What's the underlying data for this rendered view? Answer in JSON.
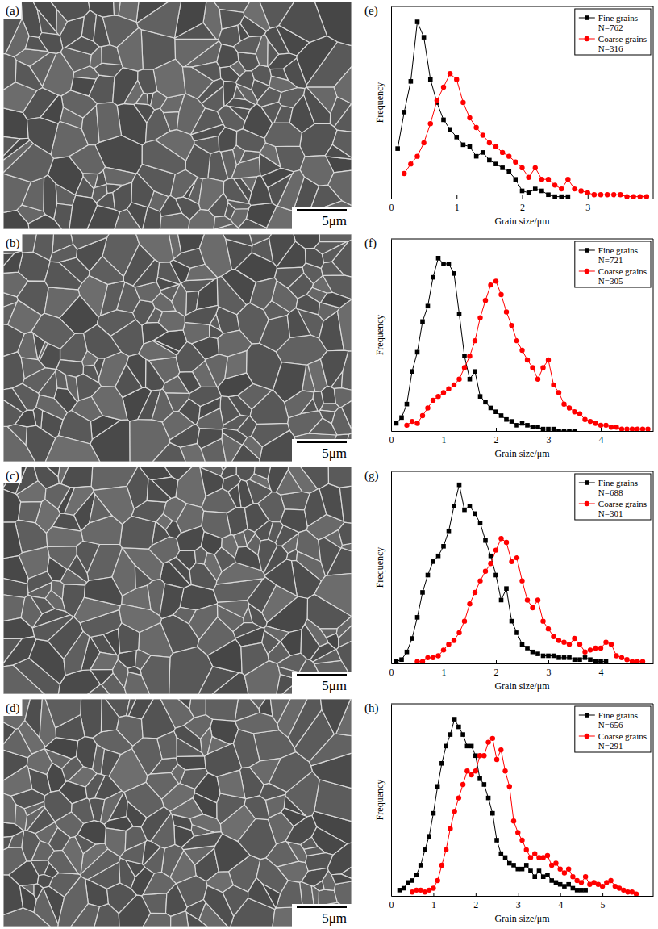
{
  "images": [
    {
      "label": "(a)",
      "scale_bar": "5μm"
    },
    {
      "label": "(b)",
      "scale_bar": "5μm"
    },
    {
      "label": "(c)",
      "scale_bar": "5μm"
    },
    {
      "label": "(d)",
      "scale_bar": "5μm"
    }
  ],
  "chart_data": [
    {
      "type": "line",
      "label": "(e)",
      "xlabel": "Grain size/μm",
      "ylabel": "Frequency",
      "xlim": [
        0,
        4
      ],
      "xticks": [
        0,
        1,
        2,
        3
      ],
      "ylim": [
        0,
        100
      ],
      "tick_labels": "x",
      "legend": "top-right",
      "series": [
        {
          "name": "Fine grains\nN=762",
          "color": "#000000",
          "marker": "square",
          "x": [
            0.1,
            0.2,
            0.3,
            0.4,
            0.5,
            0.6,
            0.7,
            0.8,
            0.9,
            1.0,
            1.1,
            1.2,
            1.3,
            1.4,
            1.5,
            1.6,
            1.7,
            1.8,
            1.9,
            2.0,
            2.1,
            2.2,
            2.3,
            2.4,
            2.5,
            2.6,
            2.7
          ],
          "values": [
            26,
            45,
            61,
            92,
            84,
            62,
            50,
            41,
            36,
            32,
            28,
            27,
            22,
            24,
            20,
            18,
            16,
            14,
            10,
            4,
            3,
            5,
            4,
            2,
            1,
            1,
            1
          ]
        },
        {
          "name": "Coarse grains\nN=316",
          "color": "#ff0000",
          "marker": "circle",
          "x": [
            0.2,
            0.3,
            0.4,
            0.5,
            0.6,
            0.7,
            0.8,
            0.9,
            1.0,
            1.1,
            1.2,
            1.3,
            1.4,
            1.5,
            1.6,
            1.7,
            1.8,
            1.9,
            2.0,
            2.1,
            2.2,
            2.3,
            2.4,
            2.5,
            2.6,
            2.7,
            2.8,
            2.9,
            3.0,
            3.1,
            3.2,
            3.3,
            3.4,
            3.5,
            3.6,
            3.7,
            3.8,
            3.9
          ],
          "values": [
            13,
            18,
            22,
            29,
            39,
            51,
            58,
            65,
            62,
            50,
            42,
            37,
            33,
            29,
            27,
            24,
            22,
            19,
            16,
            11,
            16,
            10,
            10,
            7,
            5,
            10,
            5,
            4,
            3,
            2,
            2,
            2,
            2,
            2,
            1,
            1,
            1,
            1
          ]
        }
      ]
    },
    {
      "type": "line",
      "label": "(f)",
      "xlabel": "Grain size/μm",
      "ylabel": "Frequency",
      "xlim": [
        0,
        5
      ],
      "xticks": [
        0,
        1,
        2,
        3,
        4
      ],
      "ylim": [
        0,
        100
      ],
      "tick_labels": "x",
      "legend": "top-right",
      "series": [
        {
          "name": "Fine grains\nN=721",
          "color": "#000000",
          "marker": "square",
          "x": [
            0.1,
            0.2,
            0.3,
            0.4,
            0.5,
            0.6,
            0.7,
            0.8,
            0.9,
            1.0,
            1.1,
            1.2,
            1.3,
            1.4,
            1.5,
            1.6,
            1.7,
            1.8,
            1.9,
            2.0,
            2.1,
            2.2,
            2.3,
            2.4,
            2.5,
            2.6,
            2.7,
            2.8,
            2.9,
            3.0,
            3.1,
            3.2,
            3.3,
            3.4,
            3.5
          ],
          "values": [
            4,
            7,
            14,
            31,
            41,
            57,
            65,
            80,
            90,
            87,
            87,
            82,
            61,
            39,
            27,
            31,
            18,
            15,
            12,
            10,
            8,
            6,
            5,
            3,
            4,
            3,
            2,
            2,
            1,
            1,
            1,
            0,
            0,
            0,
            0
          ]
        },
        {
          "name": "Coarse grains\nN=305",
          "color": "#ff0000",
          "marker": "circle",
          "x": [
            0.3,
            0.4,
            0.5,
            0.6,
            0.7,
            0.8,
            0.9,
            1.0,
            1.1,
            1.2,
            1.3,
            1.4,
            1.5,
            1.6,
            1.7,
            1.8,
            1.9,
            2.0,
            2.1,
            2.2,
            2.3,
            2.4,
            2.5,
            2.6,
            2.7,
            2.8,
            2.9,
            3.0,
            3.1,
            3.2,
            3.3,
            3.4,
            3.5,
            3.6,
            3.7,
            3.8,
            3.9,
            4.0,
            4.1,
            4.2,
            4.3,
            4.4,
            4.5,
            4.6,
            4.7,
            4.8,
            4.9
          ],
          "values": [
            3,
            5,
            4,
            8,
            12,
            16,
            18,
            20,
            22,
            24,
            27,
            33,
            39,
            47,
            59,
            68,
            76,
            78,
            71,
            62,
            55,
            47,
            42,
            37,
            33,
            27,
            33,
            37,
            24,
            20,
            14,
            12,
            10,
            9,
            6,
            5,
            4,
            3,
            3,
            2,
            2,
            1,
            1,
            1,
            1,
            1,
            1
          ]
        }
      ]
    },
    {
      "type": "line",
      "label": "(g)",
      "xlabel": "Grain size/μm",
      "ylabel": "Frequency",
      "xlim": [
        0,
        5
      ],
      "xticks": [
        0,
        1,
        2,
        3,
        4
      ],
      "ylim": [
        0,
        100
      ],
      "tick_labels": "x",
      "legend": "top-right",
      "series": [
        {
          "name": "Fine grains\nN=688",
          "color": "#000000",
          "marker": "square",
          "x": [
            0.1,
            0.2,
            0.3,
            0.4,
            0.5,
            0.6,
            0.7,
            0.8,
            0.9,
            1.0,
            1.1,
            1.2,
            1.3,
            1.4,
            1.5,
            1.6,
            1.7,
            1.8,
            1.9,
            2.0,
            2.1,
            2.2,
            2.3,
            2.4,
            2.5,
            2.6,
            2.7,
            2.8,
            2.9,
            3.0,
            3.1,
            3.2,
            3.3,
            3.4,
            3.5,
            3.6,
            3.7,
            3.8,
            3.9,
            4.0,
            4.1
          ],
          "values": [
            1,
            2,
            6,
            13,
            24,
            37,
            46,
            53,
            56,
            61,
            69,
            82,
            93,
            80,
            82,
            78,
            73,
            64,
            56,
            46,
            33,
            39,
            22,
            16,
            10,
            8,
            6,
            5,
            4,
            4,
            4,
            3,
            3,
            3,
            2,
            2,
            3,
            2,
            1,
            1,
            1
          ]
        },
        {
          "name": "Coarse grains\nN=301",
          "color": "#ff0000",
          "marker": "circle",
          "x": [
            0.5,
            0.6,
            0.7,
            0.8,
            0.9,
            1.0,
            1.1,
            1.2,
            1.3,
            1.4,
            1.5,
            1.6,
            1.7,
            1.8,
            1.9,
            2.0,
            2.1,
            2.2,
            2.3,
            2.4,
            2.5,
            2.6,
            2.7,
            2.8,
            2.9,
            3.0,
            3.1,
            3.2,
            3.3,
            3.4,
            3.5,
            3.6,
            3.7,
            3.8,
            3.9,
            4.0,
            4.1,
            4.2,
            4.3,
            4.4,
            4.5,
            4.6,
            4.7,
            4.8
          ],
          "values": [
            1,
            1,
            3,
            3,
            4,
            7,
            10,
            12,
            16,
            22,
            31,
            37,
            43,
            48,
            52,
            59,
            65,
            63,
            53,
            55,
            43,
            33,
            29,
            33,
            22,
            18,
            14,
            12,
            11,
            10,
            13,
            10,
            6,
            7,
            8,
            8,
            11,
            10,
            4,
            3,
            2,
            1,
            1,
            1
          ]
        }
      ]
    },
    {
      "type": "line",
      "label": "(h)",
      "xlabel": "Grain size/μm",
      "ylabel": "Frequency",
      "xlim": [
        0,
        6.2
      ],
      "xticks": [
        0,
        1,
        2,
        3,
        4,
        5
      ],
      "ylim": [
        0,
        100
      ],
      "tick_labels": "x",
      "legend": "top-right",
      "series": [
        {
          "name": "Fine grains\nN=656",
          "color": "#000000",
          "marker": "square",
          "x": [
            0.2,
            0.3,
            0.4,
            0.5,
            0.6,
            0.7,
            0.8,
            0.9,
            1.0,
            1.1,
            1.2,
            1.3,
            1.4,
            1.5,
            1.6,
            1.7,
            1.8,
            1.9,
            2.0,
            2.1,
            2.2,
            2.3,
            2.4,
            2.5,
            2.6,
            2.7,
            2.8,
            2.9,
            3.0,
            3.1,
            3.2,
            3.3,
            3.4,
            3.5,
            3.6,
            3.7,
            3.8,
            3.9,
            4.0,
            4.1,
            4.2,
            4.3,
            4.4,
            4.5,
            4.6
          ],
          "values": [
            3,
            4,
            7,
            8,
            11,
            16,
            24,
            31,
            43,
            57,
            69,
            78,
            84,
            92,
            88,
            84,
            78,
            78,
            73,
            61,
            58,
            51,
            43,
            29,
            22,
            20,
            17,
            16,
            14,
            14,
            16,
            13,
            10,
            13,
            10,
            11,
            8,
            7,
            6,
            5,
            6,
            4,
            3,
            3,
            3
          ]
        },
        {
          "name": "Coarse grains\nN=291",
          "color": "#ff0000",
          "marker": "circle",
          "x": [
            0.5,
            0.6,
            0.7,
            0.8,
            0.9,
            1.0,
            1.1,
            1.2,
            1.3,
            1.4,
            1.5,
            1.6,
            1.7,
            1.8,
            1.9,
            2.0,
            2.1,
            2.2,
            2.3,
            2.4,
            2.5,
            2.6,
            2.7,
            2.8,
            2.9,
            3.0,
            3.1,
            3.2,
            3.3,
            3.4,
            3.5,
            3.6,
            3.7,
            3.8,
            3.9,
            4.0,
            4.1,
            4.2,
            4.3,
            4.4,
            4.5,
            4.6,
            4.7,
            4.8,
            4.9,
            5.0,
            5.1,
            5.2,
            5.3,
            5.4,
            5.5,
            5.6,
            5.7,
            5.8
          ],
          "values": [
            2,
            3,
            3,
            2,
            3,
            4,
            8,
            16,
            24,
            35,
            44,
            51,
            58,
            65,
            63,
            65,
            73,
            73,
            80,
            82,
            71,
            76,
            65,
            57,
            39,
            33,
            29,
            24,
            20,
            22,
            20,
            20,
            21,
            16,
            17,
            14,
            12,
            14,
            10,
            8,
            7,
            10,
            6,
            7,
            6,
            5,
            7,
            8,
            5,
            4,
            3,
            2,
            2,
            1
          ]
        }
      ]
    }
  ]
}
